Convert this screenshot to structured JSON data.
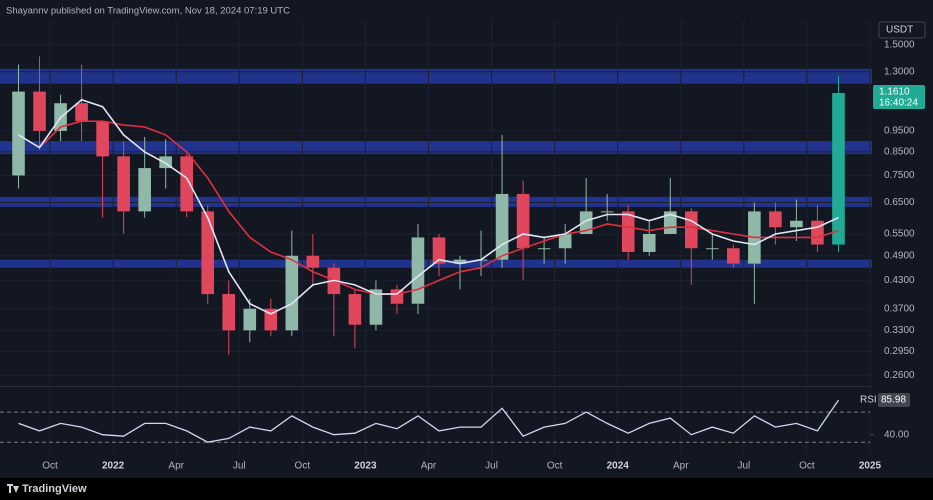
{
  "header": {
    "text": "Shayannv published on TradingView.com, Nov 18, 2024 07:19 UTC"
  },
  "footer": {
    "brand": "TradingView"
  },
  "chart_data": {
    "type": "candlestick",
    "currency": "USDT",
    "log_scale": true,
    "grid": true,
    "ylim": [
      0.247,
      1.71
    ],
    "yticks": [
      {
        "value": 1.5,
        "label": "1.5000"
      },
      {
        "value": 1.3,
        "label": "1.3000"
      },
      {
        "value": 0.95,
        "label": "0.9500"
      },
      {
        "value": 0.85,
        "label": "0.8500"
      },
      {
        "value": 0.75,
        "label": "0.7500"
      },
      {
        "value": 0.65,
        "label": "0.6500"
      },
      {
        "value": 0.55,
        "label": "0.5500"
      },
      {
        "value": 0.49,
        "label": "0.4900"
      },
      {
        "value": 0.43,
        "label": "0.4300"
      },
      {
        "value": 0.37,
        "label": "0.3700"
      },
      {
        "value": 0.33,
        "label": "0.3300"
      },
      {
        "value": 0.295,
        "label": "0.2950"
      },
      {
        "value": 0.26,
        "label": "0.2600"
      }
    ],
    "xlim": [
      "2021-08",
      "2025-01"
    ],
    "xticks": [
      {
        "value": "2021-10",
        "label": "Oct"
      },
      {
        "value": "2022-01",
        "label": "2022"
      },
      {
        "value": "2022-04",
        "label": "Apr"
      },
      {
        "value": "2022-07",
        "label": "Jul"
      },
      {
        "value": "2022-10",
        "label": "Oct"
      },
      {
        "value": "2023-01",
        "label": "2023"
      },
      {
        "value": "2023-04",
        "label": "Apr"
      },
      {
        "value": "2023-07",
        "label": "Jul"
      },
      {
        "value": "2023-10",
        "label": "Oct"
      },
      {
        "value": "2024-01",
        "label": "2024"
      },
      {
        "value": "2024-04",
        "label": "Apr"
      },
      {
        "value": "2024-07",
        "label": "Jul"
      },
      {
        "value": "2024-10",
        "label": "Oct"
      },
      {
        "value": "2025-01",
        "label": "2025"
      }
    ],
    "x": [
      "2021-08",
      "2021-09",
      "2021-10",
      "2021-11",
      "2021-12",
      "2022-01",
      "2022-02",
      "2022-03",
      "2022-04",
      "2022-05",
      "2022-06",
      "2022-07",
      "2022-08",
      "2022-09",
      "2022-10",
      "2022-11",
      "2022-12",
      "2023-01",
      "2023-02",
      "2023-03",
      "2023-04",
      "2023-05",
      "2023-06",
      "2023-07",
      "2023-08",
      "2023-09",
      "2023-10",
      "2023-11",
      "2023-12",
      "2024-01",
      "2024-02",
      "2024-03",
      "2024-04",
      "2024-05",
      "2024-06",
      "2024-07",
      "2024-08",
      "2024-09",
      "2024-10",
      "2024-11"
    ],
    "open": [
      0.75,
      1.17,
      0.95,
      1.1,
      1.0,
      0.83,
      0.62,
      0.78,
      0.83,
      0.62,
      0.4,
      0.33,
      0.37,
      0.33,
      0.49,
      0.46,
      0.4,
      0.34,
      0.41,
      0.38,
      0.54,
      0.47,
      0.48,
      0.48,
      0.68,
      0.51,
      0.51,
      0.55,
      0.62,
      0.62,
      0.5,
      0.55,
      0.62,
      0.51,
      0.51,
      0.47,
      0.62,
      0.57,
      0.59,
      0.52
    ],
    "high": [
      1.35,
      1.41,
      1.15,
      1.35,
      1.0,
      0.9,
      0.92,
      0.91,
      0.84,
      0.64,
      0.43,
      0.39,
      0.39,
      0.56,
      0.55,
      0.47,
      0.41,
      0.43,
      0.42,
      0.58,
      0.55,
      0.49,
      0.56,
      0.93,
      0.73,
      0.54,
      0.58,
      0.74,
      0.68,
      0.64,
      0.59,
      0.74,
      0.63,
      0.55,
      0.52,
      0.65,
      0.65,
      0.66,
      0.64,
      1.27
    ],
    "low": [
      0.7,
      0.86,
      0.9,
      0.9,
      0.6,
      0.55,
      0.6,
      0.7,
      0.6,
      0.38,
      0.29,
      0.31,
      0.32,
      0.32,
      0.42,
      0.32,
      0.3,
      0.33,
      0.36,
      0.36,
      0.44,
      0.41,
      0.44,
      0.46,
      0.43,
      0.47,
      0.47,
      0.55,
      0.59,
      0.48,
      0.49,
      0.55,
      0.42,
      0.48,
      0.46,
      0.38,
      0.52,
      0.53,
      0.5,
      0.5
    ],
    "close": [
      1.17,
      0.95,
      1.1,
      1.0,
      0.83,
      0.62,
      0.78,
      0.83,
      0.62,
      0.4,
      0.33,
      0.37,
      0.33,
      0.49,
      0.46,
      0.4,
      0.34,
      0.41,
      0.38,
      0.54,
      0.47,
      0.48,
      0.48,
      0.68,
      0.51,
      0.51,
      0.55,
      0.62,
      0.62,
      0.5,
      0.55,
      0.62,
      0.51,
      0.51,
      0.47,
      0.62,
      0.57,
      0.59,
      0.52,
      1.161
    ],
    "up_color": "#8fb8a8",
    "down_color": "#e0475c",
    "lines": [
      {
        "color": "#e03040",
        "values": [
          null,
          0.87,
          0.97,
          1.0,
          1.0,
          0.98,
          0.97,
          0.93,
          0.85,
          0.74,
          0.62,
          0.54,
          0.5,
          0.48,
          0.45,
          0.43,
          0.41,
          0.4,
          0.4,
          0.41,
          0.43,
          0.45,
          0.46,
          0.49,
          0.51,
          0.53,
          0.55,
          0.56,
          0.58,
          0.57,
          0.56,
          0.57,
          0.57,
          0.56,
          0.55,
          0.54,
          0.54,
          0.54,
          0.54,
          0.56
        ]
      },
      {
        "color": "#dfe6f5",
        "values": [
          0.93,
          0.87,
          1.02,
          1.12,
          1.08,
          0.93,
          0.85,
          0.8,
          0.74,
          0.6,
          0.45,
          0.38,
          0.36,
          0.38,
          0.42,
          0.43,
          0.42,
          0.4,
          0.4,
          0.44,
          0.48,
          0.47,
          0.48,
          0.52,
          0.55,
          0.54,
          0.55,
          0.59,
          0.61,
          0.61,
          0.59,
          0.61,
          0.59,
          0.55,
          0.53,
          0.52,
          0.55,
          0.56,
          0.57,
          0.6
        ]
      }
    ],
    "zones": [
      [
        1.22,
        1.32
      ],
      [
        0.84,
        0.9
      ],
      [
        0.635,
        0.67
      ],
      [
        0.46,
        0.48
      ]
    ],
    "zone_color": "#2438a0",
    "last_price": {
      "value": 1.161,
      "label": "1.1610"
    },
    "countdown": "16:40:24",
    "last_color": "#22ab94",
    "rsi": {
      "name": "RSI",
      "color": "#cfd8f0",
      "ylim": [
        13,
        102
      ],
      "yticks": [
        {
          "value": 40,
          "label": "40.00"
        }
      ],
      "bands": [
        70,
        30
      ],
      "values": [
        55,
        45,
        55,
        50,
        40,
        38,
        55,
        55,
        45,
        30,
        35,
        50,
        45,
        65,
        50,
        40,
        42,
        55,
        48,
        65,
        45,
        50,
        50,
        75,
        38,
        50,
        55,
        70,
        55,
        42,
        55,
        62,
        40,
        50,
        42,
        65,
        50,
        55,
        45,
        85.98
      ]
    }
  }
}
